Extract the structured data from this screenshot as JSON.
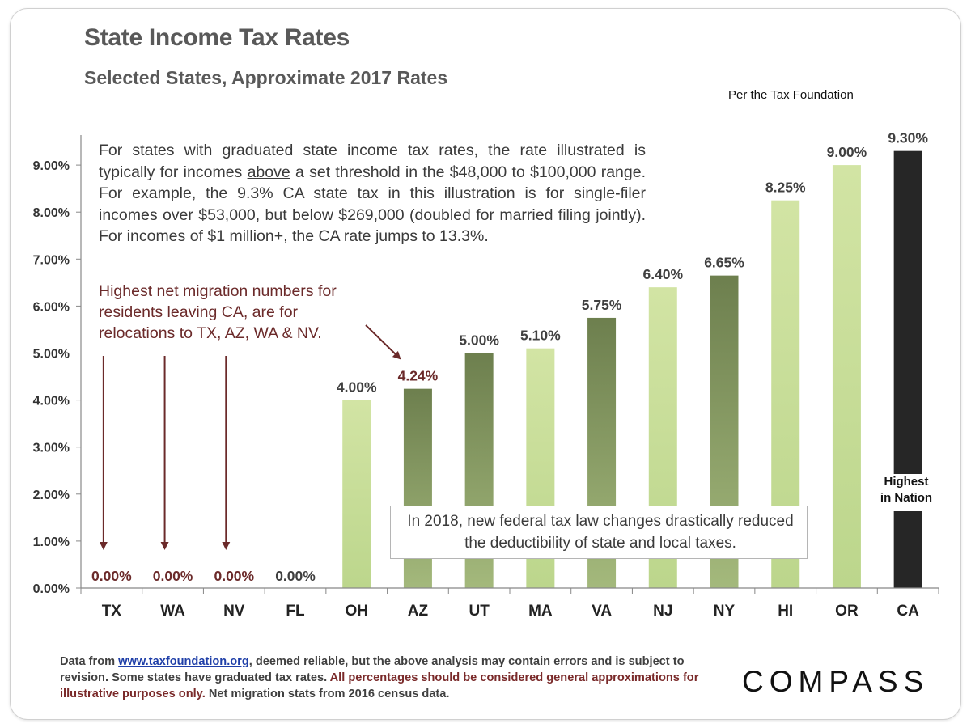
{
  "page": {
    "title": "State Income Tax Rates",
    "subtitle": "Selected States, Approximate 2017 Rates",
    "source_note": "Per the Tax Foundation"
  },
  "annotations": {
    "graduated_note_1": "For states with graduated state income tax rates, the rate illustrated is typically for incomes ",
    "graduated_note_underlined": "above",
    "graduated_note_2": " a set threshold in the $48,000 to $100,000 range. For example, the 9.3% CA state tax in this illustration is for single-filer incomes over $53,000, but below $269,000 (doubled for married filing jointly). For incomes of $1 million+, the CA rate jumps to 13.3%.",
    "migration_note": "Highest net migration numbers for residents leaving CA, are for relocations to TX, AZ, WA & NV.",
    "federal_note": "In 2018, new federal tax law changes drastically reduced the deductibility of state and local taxes.",
    "highest_line1": "Highest",
    "highest_line2": "in Nation"
  },
  "footer": {
    "part1": "Data from ",
    "link": "www.taxfoundation.org",
    "part2": ", deemed reliable, but the above analysis may contain errors and is subject to revision. Some states have graduated tax rates. ",
    "warning": "All percentages should be considered general approximations for illustrative purposes only.",
    "part3": " Net migration stats from 2016 census data."
  },
  "logo": "COMPASS",
  "colors": {
    "bar_light_top": "#d2e4a4",
    "bar_light_bottom": "#bcd68c",
    "bar_dark_top": "#6d7f4e",
    "bar_dark_bottom": "#a4b97c",
    "bar_highlight": "#262626",
    "migration_accent": "#6b2a2a",
    "axis": "#888888",
    "text": "#404040"
  },
  "chart_data": {
    "type": "bar",
    "categories": [
      "TX",
      "WA",
      "NV",
      "FL",
      "OH",
      "AZ",
      "UT",
      "MA",
      "VA",
      "NJ",
      "NY",
      "HI",
      "OR",
      "CA"
    ],
    "values": [
      0,
      0,
      0,
      0,
      4.0,
      4.24,
      5.0,
      5.1,
      5.75,
      6.4,
      6.65,
      8.25,
      9.0,
      9.3
    ],
    "value_labels": [
      "0.00%",
      "0.00%",
      "0.00%",
      "0.00%",
      "4.00%",
      "4.24%",
      "5.00%",
      "5.10%",
      "5.75%",
      "6.40%",
      "6.65%",
      "8.25%",
      "9.00%",
      "9.30%"
    ],
    "bar_styles": [
      "light",
      "light",
      "light",
      "light",
      "light",
      "dark",
      "dark",
      "light",
      "dark",
      "light",
      "dark",
      "light",
      "light",
      "highlight"
    ],
    "label_colors": [
      "#6b2a2a",
      "#6b2a2a",
      "#6b2a2a",
      "#404040",
      "#404040",
      "#6b2a2a",
      "#404040",
      "#404040",
      "#404040",
      "#404040",
      "#404040",
      "#404040",
      "#404040",
      "#404040"
    ],
    "ytick_labels": [
      "0.00%",
      "1.00%",
      "2.00%",
      "3.00%",
      "4.00%",
      "5.00%",
      "6.00%",
      "7.00%",
      "8.00%",
      "9.00%"
    ],
    "ylim": [
      0,
      9.5
    ],
    "xlabel": "",
    "ylabel": "",
    "grid": false,
    "legend": "none",
    "migration_arrow_targets": [
      "TX",
      "WA",
      "NV",
      "AZ"
    ]
  }
}
